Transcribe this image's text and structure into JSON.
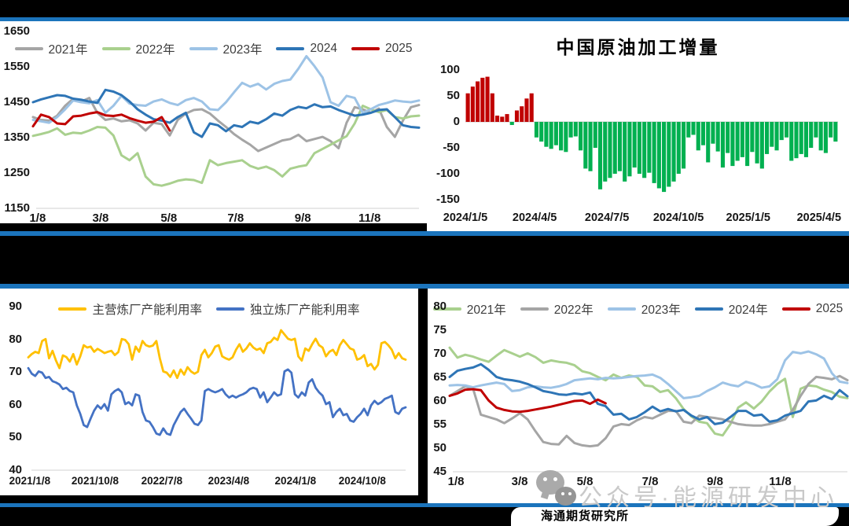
{
  "page": {
    "accent_blue": "#1b74bc",
    "band_color": "#000000",
    "axis_line_color": "#d9d9d9"
  },
  "watermark": {
    "wechat_icon": "wechat-icon",
    "full_text": "公众号·能源研发中心"
  },
  "footer": {
    "brand": "海通期货研究所"
  },
  "chart_data": [
    {
      "id": "top-left",
      "type": "line",
      "title": "",
      "ylim": [
        1150,
        1650
      ],
      "yticks": [
        1650,
        1550,
        1450,
        1350,
        1250,
        1150
      ],
      "xticks": [
        "1/8",
        "3/8",
        "5/8",
        "7/8",
        "9/8",
        "11/8"
      ],
      "x_count": 49,
      "grid": false,
      "legend_position": "top-center",
      "series": [
        {
          "name": "2021年",
          "color": "#a5a5a5",
          "values": [
            1408,
            1400,
            1398,
            1412,
            1440,
            1460,
            1452,
            1462,
            1420,
            1400,
            1404,
            1396,
            1399,
            1390,
            1370,
            1392,
            1388,
            1356,
            1400,
            1418,
            1428,
            1430,
            1418,
            1398,
            1380,
            1360,
            1344,
            1330,
            1312,
            1322,
            1332,
            1342,
            1346,
            1358,
            1340,
            1346,
            1352,
            1340,
            1320,
            1392,
            1436,
            1430,
            1420,
            1432,
            1380,
            1352,
            1398,
            1436,
            1442
          ]
        },
        {
          "name": "2022年",
          "color": "#a9d08e",
          "values": [
            1355,
            1360,
            1366,
            1376,
            1358,
            1364,
            1362,
            1370,
            1380,
            1378,
            1356,
            1300,
            1286,
            1306,
            1240,
            1218,
            1214,
            1220,
            1228,
            1232,
            1230,
            1222,
            1286,
            1272,
            1278,
            1282,
            1286,
            1270,
            1262,
            1268,
            1258,
            1240,
            1262,
            1268,
            1272,
            1306,
            1318,
            1330,
            1342,
            1354,
            1390,
            1440,
            1430,
            1422,
            1428,
            1408,
            1404,
            1410,
            1412
          ]
        },
        {
          "name": "2023年",
          "color": "#9dc3e6",
          "values": [
            1400,
            1396,
            1392,
            1408,
            1430,
            1455,
            1450,
            1447,
            1456,
            1420,
            1440,
            1468,
            1446,
            1442,
            1440,
            1452,
            1458,
            1448,
            1442,
            1456,
            1462,
            1452,
            1430,
            1428,
            1450,
            1478,
            1505,
            1494,
            1502,
            1486,
            1502,
            1510,
            1514,
            1545,
            1580,
            1552,
            1520,
            1450,
            1440,
            1468,
            1462,
            1420,
            1430,
            1442,
            1448,
            1455,
            1452,
            1450,
            1455
          ]
        },
        {
          "name": "2024",
          "color": "#2e75b6",
          "values": [
            1450,
            1458,
            1464,
            1470,
            1468,
            1460,
            1457,
            1452,
            1448,
            1485,
            1480,
            1470,
            1452,
            1430,
            1415,
            1402,
            1398,
            1392,
            1408,
            1420,
            1365,
            1352,
            1390,
            1385,
            1368,
            1385,
            1380,
            1395,
            1390,
            1402,
            1418,
            1412,
            1428,
            1437,
            1433,
            1444,
            1436,
            1438,
            1428,
            1420,
            1412,
            1415,
            1420,
            1428,
            1430,
            1408,
            1385,
            1380,
            1378
          ]
        },
        {
          "name": "2025",
          "color": "#c00000",
          "values": [
            1382,
            1415,
            1408,
            1390,
            1388,
            1410,
            1412,
            1418,
            1422,
            1413,
            1411,
            1415,
            1405,
            1398,
            1392,
            1395,
            1408,
            1370
          ]
        }
      ]
    },
    {
      "id": "top-right",
      "type": "bar",
      "title": "中国原油加工增量",
      "ylim": [
        -150,
        100
      ],
      "yticks": [
        100,
        50,
        0,
        -50,
        -100,
        -150
      ],
      "xticks": [
        "2024/1/5",
        "2024/4/5",
        "2024/7/5",
        "2024/10/5",
        "2025/1/5",
        "2025/4/5"
      ],
      "grid": false,
      "colors": {
        "positive": "#c00000",
        "negative": "#00b050"
      },
      "values": [
        55,
        68,
        78,
        85,
        87,
        55,
        12,
        10,
        15,
        -6,
        22,
        30,
        45,
        55,
        -30,
        -38,
        -48,
        -52,
        -45,
        -55,
        -58,
        -30,
        -28,
        -55,
        -90,
        -95,
        -50,
        -130,
        -115,
        -108,
        -100,
        -95,
        -115,
        -105,
        -88,
        -100,
        -108,
        -98,
        -118,
        -128,
        -135,
        -125,
        -115,
        -100,
        -90,
        -30,
        -25,
        -55,
        -45,
        -78,
        -42,
        -57,
        -88,
        -60,
        -85,
        -75,
        -68,
        -85,
        -58,
        -80,
        -90,
        -62,
        -48,
        -55,
        -35,
        -30,
        -75,
        -70,
        -62,
        -68,
        -50,
        -30,
        -55,
        -60,
        -30,
        -38
      ]
    },
    {
      "id": "bottom-left",
      "type": "line",
      "title": "",
      "ylim": [
        40,
        90
      ],
      "yticks": [
        90,
        80,
        70,
        60,
        50,
        40
      ],
      "xticks": [
        "2021/1/8",
        "2021/10/8",
        "2022/7/8",
        "2023/4/8",
        "2024/1/8",
        "2024/10/8"
      ],
      "x_count": 110,
      "grid": false,
      "legend_position": "top-center",
      "series": [
        {
          "name": "主营炼厂产能利用率",
          "color": "#ffc000",
          "values": [
            74.5,
            75.5,
            76.2,
            75.8,
            79.5,
            80.1,
            74.2,
            76.5,
            73.5,
            71.2,
            75.1,
            74.6,
            73.2,
            75.5,
            72.3,
            74.8,
            78.2,
            77.5,
            77.8,
            76.2,
            77.1,
            76.5,
            75.8,
            76.2,
            76.5,
            75.2,
            76.1,
            80.1,
            79.8,
            78.5,
            73.8,
            77.8,
            76.2,
            79.5,
            78.2,
            77.8,
            78.1,
            79.5,
            74.2,
            70.2,
            69.8,
            68.5,
            70.5,
            68.2,
            70.8,
            69.2,
            71.5,
            70.2,
            69.5,
            70.1,
            75.2,
            76.8,
            74.5,
            75.8,
            77.8,
            78.2,
            74.8,
            74.2,
            73.8,
            74.5,
            76.8,
            78.5,
            76.2,
            77.2,
            78.8,
            77.5,
            76.8,
            77.2,
            75.8,
            78.8,
            79.2,
            80.5,
            79.8,
            82.8,
            81.5,
            80.2,
            79.8,
            80.2,
            74.8,
            73.5,
            77.2,
            76.5,
            78.5,
            80.2,
            78.2,
            77.5,
            74.8,
            76.2,
            76.8,
            75.2,
            78.2,
            79.8,
            78.5,
            77.2,
            76.8,
            73.8,
            74.2,
            75.2,
            71.8,
            72.5,
            70.8,
            72.2,
            78.8,
            79.2,
            78.2,
            76.8,
            74.2,
            75.8,
            74.2,
            73.8
          ]
        },
        {
          "name": "独立炼厂产能利用率",
          "color": "#4472c4",
          "values": [
            71.2,
            69.5,
            68.8,
            70.2,
            69.8,
            68.2,
            68.5,
            67.2,
            66.8,
            66.2,
            64.8,
            65.2,
            64.2,
            63.8,
            59.8,
            57.2,
            53.8,
            53.2,
            55.8,
            58.2,
            59.8,
            58.8,
            60.2,
            58.2,
            63.2,
            64.2,
            64.8,
            63.8,
            60.2,
            60.8,
            59.8,
            63.2,
            62.8,
            57.8,
            55.2,
            54.8,
            53.2,
            51.2,
            50.8,
            52.8,
            51.2,
            50.8,
            53.8,
            55.8,
            57.8,
            58.8,
            57.2,
            55.8,
            54.2,
            53.8,
            55.2,
            64.2,
            64.8,
            64.2,
            63.8,
            64.2,
            64.8,
            63.2,
            62.2,
            62.8,
            62.2,
            62.8,
            63.2,
            63.8,
            64.8,
            65.2,
            64.8,
            62.2,
            63.8,
            60.8,
            62.2,
            63.8,
            62.8,
            63.2,
            70.2,
            70.8,
            69.8,
            63.2,
            62.2,
            63.8,
            62.8,
            66.8,
            67.8,
            65.2,
            63.8,
            62.8,
            60.2,
            60.8,
            56.2,
            57.8,
            58.8,
            56.8,
            57.2,
            55.2,
            54.8,
            56.2,
            57.2,
            58.8,
            56.8,
            59.8,
            61.2,
            60.2,
            60.8,
            61.8,
            62.2,
            62.8,
            57.8,
            57.2,
            58.8,
            59.2
          ]
        }
      ]
    },
    {
      "id": "bottom-right",
      "type": "line",
      "title": "",
      "ylim": [
        45,
        80
      ],
      "yticks": [
        80,
        75,
        70,
        65,
        60,
        55,
        50,
        45
      ],
      "xticks": [
        "1/8",
        "3/8",
        "5/8",
        "7/8",
        "9/8",
        "11/8"
      ],
      "x_count": 52,
      "grid": false,
      "legend_position": "top-center",
      "series": [
        {
          "name": "2021年",
          "color": "#a9d08e",
          "values": [
            71.3,
            69.2,
            69.8,
            69.4,
            68.8,
            68.3,
            69.6,
            70.8,
            70.1,
            69.4,
            70.1,
            69.3,
            68.1,
            68.6,
            68.3,
            68.1,
            67.6,
            66.3,
            65.9,
            65.1,
            64.4,
            65.6,
            64.9,
            65.4,
            65.1,
            63.3,
            63.1,
            61.9,
            62.3,
            60.6,
            58.3,
            56.7,
            55.6,
            55.3,
            53.1,
            52.7,
            55.1,
            58.6,
            59.7,
            58.4,
            59.9,
            62.0,
            63.6,
            64.7,
            56.6,
            62.6,
            63.3,
            63.1,
            62.4,
            61.9,
            60.9,
            60.6
          ]
        },
        {
          "name": "2022年",
          "color": "#a5a5a5",
          "values": [
            61.1,
            62.1,
            63.1,
            62.6,
            57.1,
            56.6,
            56.1,
            55.3,
            56.3,
            57.4,
            56.1,
            53.6,
            51.3,
            50.9,
            50.8,
            52.6,
            51.1,
            50.6,
            50.4,
            50.6,
            52.1,
            54.6,
            55.1,
            54.9,
            55.9,
            56.6,
            56.3,
            57.1,
            57.9,
            57.9,
            55.6,
            55.3,
            56.9,
            56.6,
            56.4,
            56.1,
            55.6,
            55.1,
            54.9,
            54.8,
            54.8,
            55.1,
            55.6,
            56.1,
            58.1,
            61.1,
            63.6,
            65.1,
            64.9,
            64.6,
            65.3,
            64.4
          ]
        },
        {
          "name": "2023年",
          "color": "#9dc3e6",
          "values": [
            63.3,
            63.4,
            63.3,
            62.9,
            63.3,
            63.6,
            63.9,
            63.6,
            62.1,
            62.3,
            62.9,
            63.1,
            62.9,
            62.8,
            63.1,
            63.6,
            64.4,
            64.6,
            64.8,
            64.6,
            64.9,
            64.8,
            64.9,
            65.1,
            65.3,
            65.4,
            65.6,
            64.9,
            63.6,
            62.1,
            60.6,
            60.8,
            61.1,
            62.1,
            62.9,
            63.9,
            63.4,
            63.1,
            64.1,
            63.6,
            62.8,
            63.1,
            64.6,
            68.6,
            70.4,
            70.1,
            70.5,
            69.9,
            69.0,
            65.9,
            64.1,
            63.8
          ]
        },
        {
          "name": "2024年",
          "color": "#2e75b6",
          "values": [
            65.1,
            66.4,
            66.8,
            67.1,
            67.8,
            66.6,
            65.1,
            64.6,
            64.4,
            64.1,
            63.6,
            62.9,
            62.1,
            61.8,
            61.4,
            61.3,
            61.6,
            61.4,
            61.8,
            59.4,
            58.9,
            57.1,
            57.3,
            56.1,
            56.6,
            57.6,
            58.8,
            57.8,
            58.3,
            57.8,
            58.1,
            56.9,
            56.1,
            56.6,
            55.1,
            55.4,
            56.6,
            57.9,
            57.9,
            56.9,
            57.1,
            55.6,
            55.9,
            56.9,
            57.4,
            57.9,
            59.9,
            60.1,
            61.1,
            60.4,
            62.3,
            61.0
          ]
        },
        {
          "name": "2025",
          "color": "#c00000",
          "values": [
            61.1,
            61.6,
            62.4,
            62.5,
            62.3,
            60.1,
            58.6,
            58.1,
            57.8,
            57.7,
            57.9,
            58.2,
            58.5,
            58.8,
            59.2,
            59.6,
            60.0,
            60.1,
            59.4,
            60.3,
            59.5
          ]
        }
      ]
    }
  ]
}
